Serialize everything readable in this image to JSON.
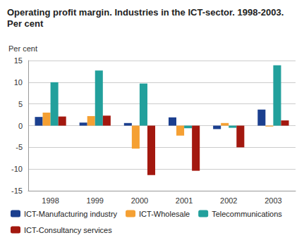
{
  "chart_data": {
    "type": "bar",
    "title": "Operating profit margin. Industries in the ICT-sector. 1998-2003.",
    "subtitle": "Per cent",
    "y_label": "Per cent",
    "categories": [
      "1998",
      "1999",
      "2000",
      "2001",
      "2002",
      "2003"
    ],
    "series": [
      {
        "name": "ICT-Manufacturing industry",
        "color": "#1b3f8f",
        "values": [
          2.0,
          0.7,
          0.6,
          1.9,
          -0.8,
          3.7
        ]
      },
      {
        "name": "ICT-Wholesale",
        "color": "#f5a033",
        "values": [
          3.0,
          2.2,
          -5.3,
          -2.3,
          0.6,
          -0.2
        ]
      },
      {
        "name": "Telecommunications",
        "color": "#22a09c",
        "values": [
          10.0,
          12.7,
          9.7,
          -0.6,
          -0.5,
          13.9
        ]
      },
      {
        "name": "ICT-Consultancy services",
        "color": "#a3180f",
        "values": [
          2.1,
          2.3,
          -11.4,
          -10.4,
          -5.0,
          1.2
        ]
      }
    ],
    "ylim": [
      -15,
      15
    ],
    "yticks": [
      -15,
      -10,
      -5,
      0,
      5,
      10,
      15
    ],
    "grid": true,
    "legend": "bottom"
  }
}
